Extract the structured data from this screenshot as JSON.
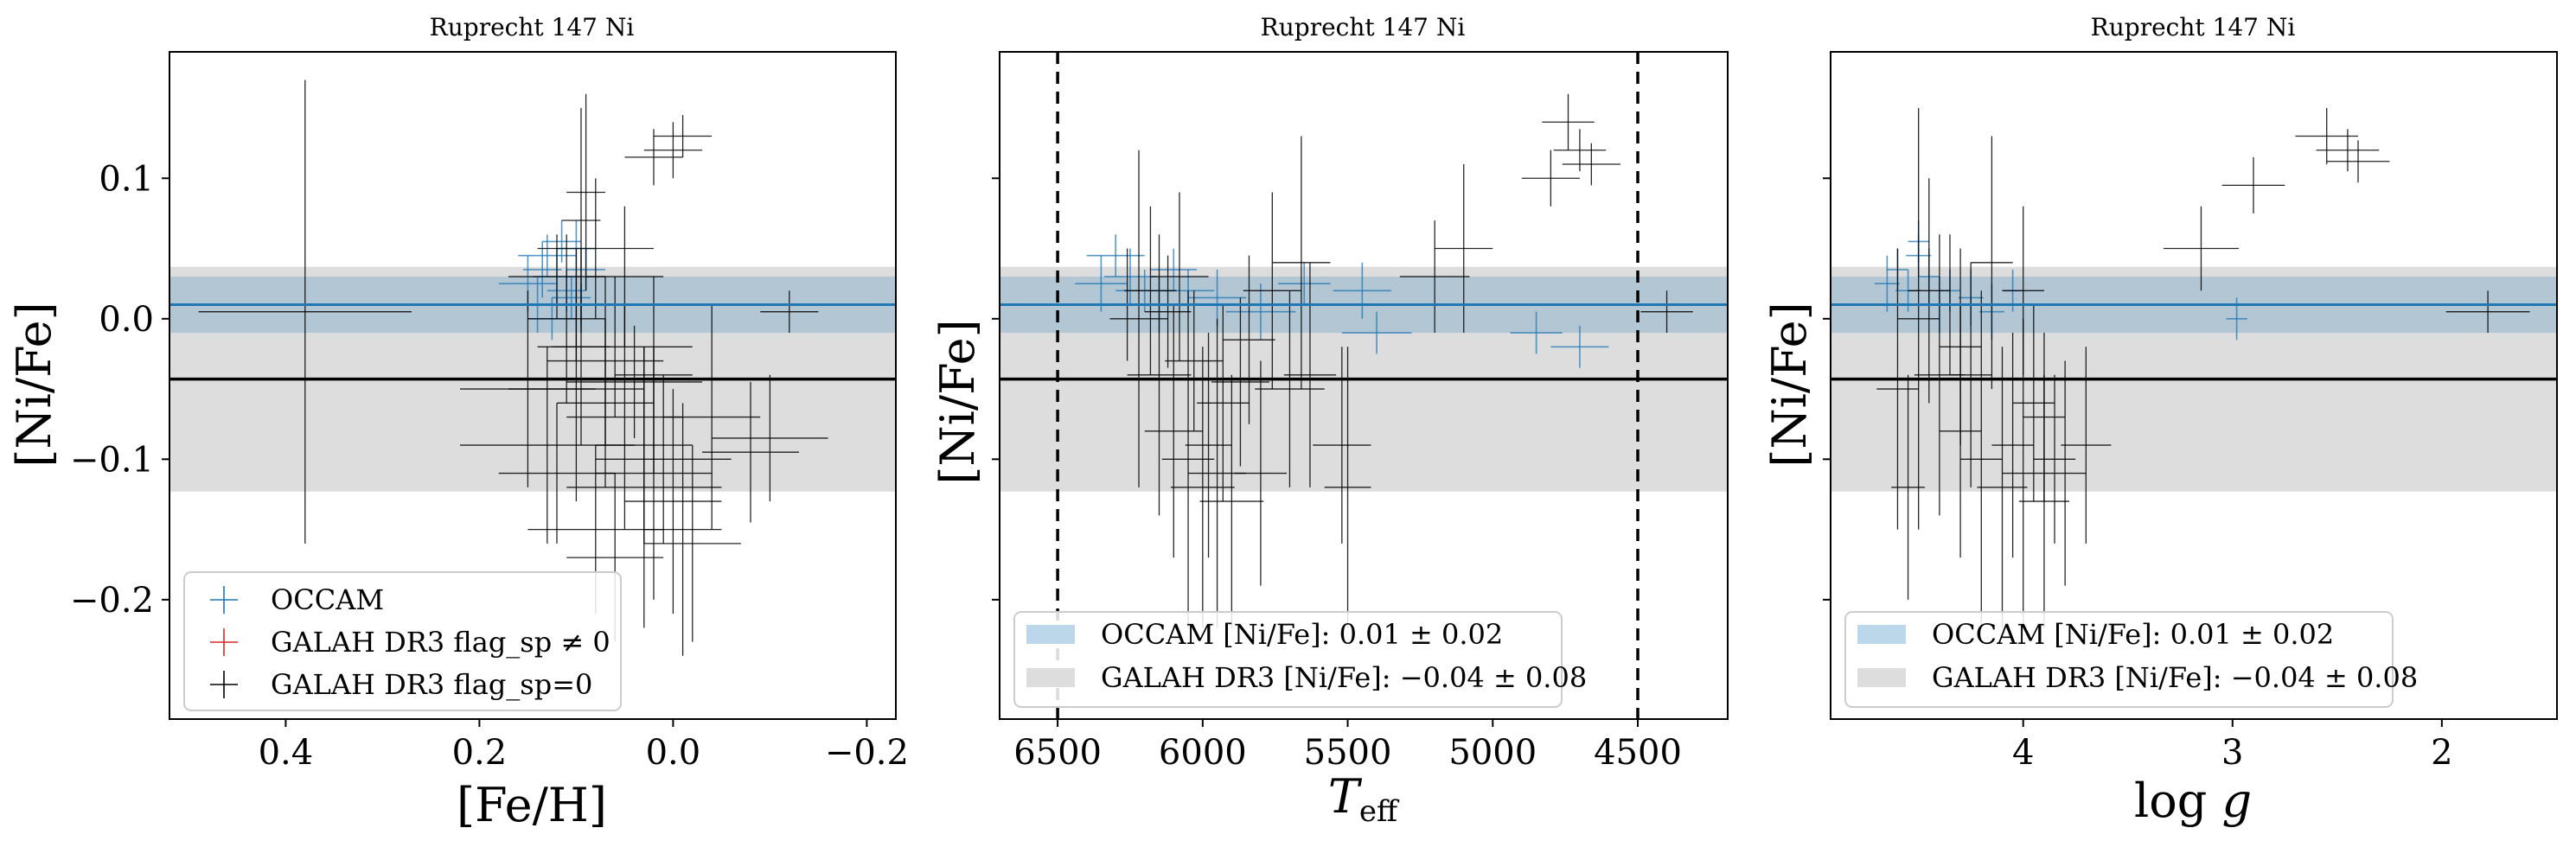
{
  "chart_data": [
    {
      "type": "scatter",
      "title": "Ruprecht 147 Ni",
      "xlabel": "[Fe/H]",
      "ylabel": "[Ni/Fe]",
      "xlim": [
        0.52,
        -0.23
      ],
      "ylim": [
        -0.285,
        0.19
      ],
      "xticks": [
        0.4,
        0.2,
        0.0,
        -0.2
      ],
      "xtick_labels": [
        "0.4",
        "0.2",
        "0.0",
        "−0.2"
      ],
      "yticks": [
        0.1,
        0.0,
        -0.1,
        -0.2
      ],
      "ytick_labels": [
        "0.1",
        "0.0",
        "−0.1",
        "−0.2"
      ],
      "show_ytick_labels": true,
      "bands": [
        {
          "name": "OCCAM",
          "mean": 0.01,
          "sigma": 0.02,
          "color": "#1f77b4"
        },
        {
          "name": "GALAH DR3",
          "mean": -0.043,
          "sigma": 0.08,
          "color": "#000000"
        }
      ],
      "vlines": [],
      "legend": {
        "position": "lower-left",
        "entries": [
          {
            "label": "OCCAM",
            "color": "#1f77b4",
            "kind": "marker"
          },
          {
            "label": "GALAH DR3 flag_sp ≠ 0",
            "color": "#d62728",
            "kind": "marker"
          },
          {
            "label": "GALAH DR3 flag_sp=0",
            "color": "#000000",
            "kind": "marker"
          }
        ]
      },
      "series": [
        {
          "name": "OCCAM",
          "color": "#1f77b4",
          "points": [
            [
              0.13,
              0.045,
              0.03,
              0.015
            ],
            [
              0.12,
              0.03,
              0.025,
              0.02
            ],
            [
              0.11,
              0.02,
              0.02,
              0.015
            ],
            [
              0.14,
              0.01,
              0.03,
              0.02
            ],
            [
              0.1,
              0.05,
              0.02,
              0.02
            ],
            [
              0.125,
              0.0,
              0.025,
              0.015
            ],
            [
              0.09,
              0.035,
              0.02,
              0.015
            ],
            [
              0.15,
              0.025,
              0.03,
              0.02
            ],
            [
              0.115,
              0.055,
              0.02,
              0.015
            ],
            [
              0.105,
              0.015,
              0.02,
              0.015
            ],
            [
              0.135,
              0.035,
              0.02,
              0.02
            ],
            [
              0.095,
              0.01,
              0.02,
              0.015
            ]
          ]
        },
        {
          "name": "GALAH DR3 flag_sp=0",
          "color": "#000000",
          "points": [
            [
              0.38,
              0.005,
              0.11,
              0.165
            ],
            [
              0.12,
              0.03,
              0.05,
              0.03
            ],
            [
              0.1,
              0.01,
              0.06,
              0.04
            ],
            [
              0.09,
              0.09,
              0.02,
              0.07
            ],
            [
              0.08,
              0.05,
              0.06,
              0.05
            ],
            [
              0.11,
              0.0,
              0.04,
              0.06
            ],
            [
              0.095,
              -0.02,
              0.03,
              0.07
            ],
            [
              0.1,
              -0.05,
              0.07,
              0.08
            ],
            [
              0.07,
              -0.06,
              0.05,
              0.06
            ],
            [
              0.06,
              -0.02,
              0.08,
              0.05
            ],
            [
              0.05,
              -0.07,
              0.06,
              0.08
            ],
            [
              0.04,
              -0.045,
              0.07,
              0.04
            ],
            [
              0.03,
              -0.09,
              0.05,
              0.07
            ],
            [
              0.02,
              -0.11,
              0.06,
              0.09
            ],
            [
              0.01,
              -0.1,
              0.07,
              0.06
            ],
            [
              0.0,
              -0.13,
              0.05,
              0.08
            ],
            [
              -0.01,
              -0.15,
              0.04,
              0.09
            ],
            [
              -0.02,
              -0.16,
              0.05,
              0.07
            ],
            [
              0.0,
              0.12,
              0.03,
              0.02
            ],
            [
              -0.01,
              0.13,
              0.03,
              0.015
            ],
            [
              0.02,
              0.115,
              0.03,
              0.02
            ],
            [
              -0.12,
              0.005,
              0.03,
              0.015
            ],
            [
              -0.1,
              -0.085,
              0.06,
              0.045
            ],
            [
              -0.08,
              -0.095,
              0.05,
              0.05
            ],
            [
              0.07,
              -0.03,
              0.06,
              0.06
            ],
            [
              0.05,
              0.03,
              0.04,
              0.05
            ],
            [
              0.13,
              -0.09,
              0.09,
              0.07
            ],
            [
              0.08,
              -0.15,
              0.07,
              0.06
            ],
            [
              0.03,
              -0.12,
              0.08,
              0.1
            ],
            [
              0.15,
              -0.05,
              0.07,
              0.07
            ],
            [
              -0.04,
              -0.07,
              0.05,
              0.08
            ],
            [
              0.06,
              -0.17,
              0.05,
              0.06
            ],
            [
              0.12,
              -0.11,
              0.06,
              0.05
            ],
            [
              0.02,
              -0.04,
              0.04,
              0.07
            ],
            [
              0.095,
              0.07,
              0.02,
              0.08
            ]
          ]
        }
      ]
    },
    {
      "type": "scatter",
      "title": "Ruprecht 147 Ni",
      "xlabel": "T_eff",
      "ylabel": "[Ni/Fe]",
      "xlim": [
        6700,
        4190
      ],
      "ylim": [
        -0.285,
        0.19
      ],
      "xticks": [
        6500,
        6000,
        5500,
        5000,
        4500
      ],
      "xtick_labels": [
        "6500",
        "6000",
        "5500",
        "5000",
        "4500"
      ],
      "yticks": [
        0.1,
        0.0,
        -0.1,
        -0.2
      ],
      "ytick_labels": [
        "",
        "",
        "",
        ""
      ],
      "show_ytick_labels": false,
      "bands": [
        {
          "name": "OCCAM",
          "mean": 0.01,
          "sigma": 0.02,
          "color": "#1f77b4"
        },
        {
          "name": "GALAH DR3",
          "mean": -0.043,
          "sigma": 0.08,
          "color": "#000000"
        }
      ],
      "vlines": [
        6500,
        4500
      ],
      "legend": {
        "position": "lower-left",
        "entries": [
          {
            "label": "OCCAM [Ni/Fe]: 0.01 ± 0.02",
            "color": "#bcd6ea",
            "kind": "patch"
          },
          {
            "label": "GALAH DR3 [Ni/Fe]: −0.04 ± 0.08",
            "color": "#dddddd",
            "kind": "patch"
          }
        ]
      },
      "series": [
        {
          "name": "OCCAM",
          "color": "#1f77b4",
          "points": [
            [
              6300,
              0.045,
              100,
              0.015
            ],
            [
              6250,
              0.03,
              90,
              0.02
            ],
            [
              6200,
              0.02,
              100,
              0.015
            ],
            [
              6150,
              0.01,
              110,
              0.02
            ],
            [
              6100,
              0.035,
              80,
              0.015
            ],
            [
              6050,
              0.02,
              90,
              0.015
            ],
            [
              5950,
              0.015,
              100,
              0.02
            ],
            [
              5800,
              0.005,
              120,
              0.02
            ],
            [
              5650,
              0.025,
              90,
              0.015
            ],
            [
              5450,
              0.02,
              100,
              0.02
            ],
            [
              5400,
              -0.01,
              120,
              0.015
            ],
            [
              4850,
              -0.01,
              90,
              0.015
            ],
            [
              4700,
              -0.02,
              100,
              0.015
            ],
            [
              6350,
              0.025,
              90,
              0.02
            ]
          ]
        },
        {
          "name": "GALAH DR3 flag_sp=0",
          "color": "#000000",
          "points": [
            [
              6220,
              0.0,
              100,
              0.12
            ],
            [
              6180,
              0.02,
              90,
              0.06
            ],
            [
              6150,
              -0.04,
              110,
              0.1
            ],
            [
              6120,
              0.005,
              80,
              0.04
            ],
            [
              6100,
              -0.08,
              100,
              0.09
            ],
            [
              6050,
              -0.1,
              90,
              0.12
            ],
            [
              6000,
              -0.12,
              110,
              0.1
            ],
            [
              5980,
              -0.09,
              80,
              0.08
            ],
            [
              5950,
              -0.11,
              100,
              0.11
            ],
            [
              5930,
              -0.06,
              90,
              0.07
            ],
            [
              5900,
              -0.13,
              110,
              0.09
            ],
            [
              5870,
              -0.045,
              100,
              0.06
            ],
            [
              5800,
              -0.11,
              90,
              0.08
            ],
            [
              5700,
              -0.05,
              120,
              0.07
            ],
            [
              5660,
              0.04,
              100,
              0.09
            ],
            [
              5630,
              -0.04,
              90,
              0.08
            ],
            [
              5520,
              -0.09,
              100,
              0.07
            ],
            [
              5500,
              -0.12,
              80,
              0.1
            ],
            [
              5200,
              0.03,
              120,
              0.04
            ],
            [
              5100,
              0.05,
              100,
              0.06
            ],
            [
              4800,
              0.1,
              100,
              0.02
            ],
            [
              4740,
              0.14,
              90,
              0.02
            ],
            [
              4700,
              0.12,
              90,
              0.015
            ],
            [
              4660,
              0.11,
              100,
              0.015
            ],
            [
              4400,
              0.005,
              90,
              0.015
            ],
            [
              6080,
              0.03,
              100,
              0.06
            ],
            [
              5760,
              0.02,
              100,
              0.07
            ],
            [
              6030,
              -0.03,
              100,
              0.05
            ],
            [
              5840,
              -0.015,
              90,
              0.06
            ],
            [
              6260,
              0.01,
              110,
              0.04
            ]
          ]
        }
      ]
    },
    {
      "type": "scatter",
      "title": "Ruprecht 147 Ni",
      "xlabel": "log g",
      "ylabel": "[Ni/Fe]",
      "xlim": [
        4.92,
        1.45
      ],
      "ylim": [
        -0.285,
        0.19
      ],
      "xticks": [
        4,
        3,
        2
      ],
      "xtick_labels": [
        "4",
        "3",
        "2"
      ],
      "yticks": [
        0.1,
        0.0,
        -0.1,
        -0.2
      ],
      "ytick_labels": [
        "",
        "",
        "",
        ""
      ],
      "show_ytick_labels": false,
      "bands": [
        {
          "name": "OCCAM",
          "mean": 0.01,
          "sigma": 0.02,
          "color": "#1f77b4"
        },
        {
          "name": "GALAH DR3",
          "mean": -0.043,
          "sigma": 0.08,
          "color": "#000000"
        }
      ],
      "vlines": [],
      "legend": {
        "position": "lower-left",
        "entries": [
          {
            "label": "OCCAM [Ni/Fe]: 0.01 ± 0.02",
            "color": "#bcd6ea",
            "kind": "patch"
          },
          {
            "label": "GALAH DR3 [Ni/Fe]: −0.04 ± 0.08",
            "color": "#dddddd",
            "kind": "patch"
          }
        ]
      },
      "series": [
        {
          "name": "OCCAM",
          "color": "#1f77b4",
          "points": [
            [
              4.5,
              0.045,
              0.06,
              0.015
            ],
            [
              4.45,
              0.03,
              0.05,
              0.02
            ],
            [
              4.55,
              0.02,
              0.06,
              0.015
            ],
            [
              4.4,
              0.01,
              0.05,
              0.02
            ],
            [
              4.6,
              0.035,
              0.05,
              0.015
            ],
            [
              4.35,
              0.02,
              0.05,
              0.015
            ],
            [
              4.25,
              0.015,
              0.06,
              0.02
            ],
            [
              4.15,
              0.005,
              0.06,
              0.02
            ],
            [
              4.5,
              0.055,
              0.05,
              0.015
            ],
            [
              2.98,
              0.0,
              0.05,
              0.015
            ],
            [
              4.65,
              0.025,
              0.06,
              0.02
            ],
            [
              4.05,
              0.02,
              0.05,
              0.015
            ]
          ]
        },
        {
          "name": "GALAH DR3 flag_sp=0",
          "color": "#000000",
          "points": [
            [
              4.5,
              0.0,
              0.1,
              0.15
            ],
            [
              4.45,
              0.02,
              0.1,
              0.08
            ],
            [
              4.4,
              -0.04,
              0.12,
              0.1
            ],
            [
              4.35,
              0.01,
              0.1,
              0.05
            ],
            [
              4.3,
              -0.08,
              0.1,
              0.09
            ],
            [
              4.2,
              -0.1,
              0.1,
              0.12
            ],
            [
              4.1,
              -0.12,
              0.12,
              0.1
            ],
            [
              4.05,
              -0.09,
              0.1,
              0.08
            ],
            [
              4.0,
              -0.11,
              0.1,
              0.11
            ],
            [
              3.95,
              -0.06,
              0.1,
              0.07
            ],
            [
              3.9,
              -0.13,
              0.12,
              0.09
            ],
            [
              3.85,
              -0.1,
              0.1,
              0.06
            ],
            [
              3.8,
              -0.11,
              0.1,
              0.08
            ],
            [
              3.7,
              -0.09,
              0.12,
              0.07
            ],
            [
              4.15,
              0.04,
              0.1,
              0.09
            ],
            [
              4.25,
              -0.04,
              0.1,
              0.08
            ],
            [
              3.15,
              0.05,
              0.18,
              0.03
            ],
            [
              2.9,
              0.095,
              0.15,
              0.02
            ],
            [
              2.55,
              0.13,
              0.15,
              0.02
            ],
            [
              2.45,
              0.12,
              0.15,
              0.015
            ],
            [
              2.4,
              0.112,
              0.15,
              0.015
            ],
            [
              1.78,
              0.005,
              0.2,
              0.015
            ],
            [
              4.6,
              -0.05,
              0.1,
              0.1
            ],
            [
              4.55,
              -0.12,
              0.08,
              0.08
            ],
            [
              4.0,
              0.02,
              0.1,
              0.06
            ],
            [
              4.3,
              -0.02,
              0.1,
              0.07
            ],
            [
              3.9,
              -0.07,
              0.1,
              0.06
            ]
          ]
        }
      ]
    }
  ]
}
